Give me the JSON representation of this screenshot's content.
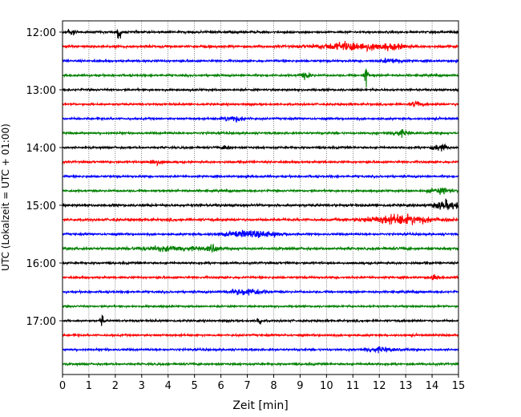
{
  "chart_data": {
    "type": "line",
    "title": "",
    "xlabel": "Zeit  [min]",
    "ylabel": "UTC (Lokalzeit = UTC + 01:00)",
    "xlim": [
      0,
      15
    ],
    "x_ticks": [
      "0",
      "1",
      "2",
      "3",
      "4",
      "5",
      "6",
      "7",
      "8",
      "9",
      "10",
      "11",
      "12",
      "13",
      "14",
      "15"
    ],
    "y_ticks": [
      "12:00",
      "13:00",
      "14:00",
      "15:00",
      "16:00",
      "17:00"
    ],
    "grid": "vertical dotted at each minute",
    "trace_interval_minutes": 15,
    "trace_colors": [
      "#000000",
      "#ff0000",
      "#0000ff",
      "#008000"
    ],
    "series": [
      {
        "start": "12:00",
        "color": "#000000",
        "amp": 1.0,
        "events": [
          {
            "t": 2.15,
            "amp": 9,
            "w": 0.05
          },
          {
            "t": 0.3,
            "amp": 3,
            "w": 0.15
          }
        ]
      },
      {
        "start": "12:15",
        "color": "#ff0000",
        "amp": 1.2,
        "events": [
          {
            "t": 11.0,
            "amp": 4,
            "w": 0.8
          },
          {
            "t": 12.5,
            "amp": 2,
            "w": 0.3
          }
        ]
      },
      {
        "start": "12:30",
        "color": "#0000ff",
        "amp": 1.0,
        "events": [
          {
            "t": 12.5,
            "amp": 2,
            "w": 0.3
          }
        ]
      },
      {
        "start": "12:45",
        "color": "#008000",
        "amp": 1.0,
        "events": [
          {
            "t": 11.5,
            "amp": 10,
            "w": 0.05
          },
          {
            "t": 9.2,
            "amp": 2.5,
            "w": 0.15
          }
        ]
      },
      {
        "start": "13:00",
        "color": "#000000",
        "amp": 1.0,
        "events": []
      },
      {
        "start": "13:15",
        "color": "#ff0000",
        "amp": 1.0,
        "events": [
          {
            "t": 13.4,
            "amp": 2.5,
            "w": 0.15
          }
        ]
      },
      {
        "start": "13:30",
        "color": "#0000ff",
        "amp": 1.0,
        "events": [
          {
            "t": 6.5,
            "amp": 2.5,
            "w": 0.3
          }
        ]
      },
      {
        "start": "13:45",
        "color": "#008000",
        "amp": 1.0,
        "events": [
          {
            "t": 12.8,
            "amp": 3,
            "w": 0.2
          }
        ]
      },
      {
        "start": "14:00",
        "color": "#000000",
        "amp": 1.0,
        "events": [
          {
            "t": 6.2,
            "amp": 2.5,
            "w": 0.1
          },
          {
            "t": 14.3,
            "amp": 3,
            "w": 0.2
          }
        ]
      },
      {
        "start": "14:15",
        "color": "#ff0000",
        "amp": 1.0,
        "events": [
          {
            "t": 3.5,
            "amp": 2.5,
            "w": 0.2
          }
        ]
      },
      {
        "start": "14:30",
        "color": "#0000ff",
        "amp": 1.0,
        "events": []
      },
      {
        "start": "14:45",
        "color": "#008000",
        "amp": 1.0,
        "events": [
          {
            "t": 14.3,
            "amp": 2.5,
            "w": 0.3
          }
        ]
      },
      {
        "start": "15:00",
        "color": "#000000",
        "amp": 1.2,
        "events": [
          {
            "t": 14.6,
            "amp": 4,
            "w": 0.4
          }
        ]
      },
      {
        "start": "15:15",
        "color": "#ff0000",
        "amp": 1.2,
        "events": [
          {
            "t": 12.8,
            "amp": 4.5,
            "w": 0.9
          }
        ]
      },
      {
        "start": "15:30",
        "color": "#0000ff",
        "amp": 1.0,
        "events": [
          {
            "t": 7.2,
            "amp": 3,
            "w": 0.8
          }
        ]
      },
      {
        "start": "15:45",
        "color": "#008000",
        "amp": 1.2,
        "events": [
          {
            "t": 5.7,
            "amp": 3,
            "w": 0.15
          },
          {
            "t": 4.0,
            "amp": 2,
            "w": 0.8
          }
        ]
      },
      {
        "start": "16:00",
        "color": "#000000",
        "amp": 1.0,
        "events": []
      },
      {
        "start": "16:15",
        "color": "#ff0000",
        "amp": 1.0,
        "events": [
          {
            "t": 14.1,
            "amp": 2.5,
            "w": 0.1
          }
        ]
      },
      {
        "start": "16:30",
        "color": "#0000ff",
        "amp": 1.0,
        "events": [
          {
            "t": 7.0,
            "amp": 3,
            "w": 0.5
          }
        ]
      },
      {
        "start": "16:45",
        "color": "#008000",
        "amp": 0.9,
        "events": []
      },
      {
        "start": "17:00",
        "color": "#000000",
        "amp": 1.0,
        "events": [
          {
            "t": 1.5,
            "amp": 8,
            "w": 0.04
          },
          {
            "t": 7.45,
            "amp": 9,
            "w": 0.04
          }
        ]
      },
      {
        "start": "17:15",
        "color": "#ff0000",
        "amp": 1.0,
        "events": []
      },
      {
        "start": "17:30",
        "color": "#0000ff",
        "amp": 1.0,
        "events": [
          {
            "t": 12.0,
            "amp": 2,
            "w": 0.4
          }
        ]
      },
      {
        "start": "17:45",
        "color": "#008000",
        "amp": 1.0,
        "events": []
      }
    ]
  }
}
